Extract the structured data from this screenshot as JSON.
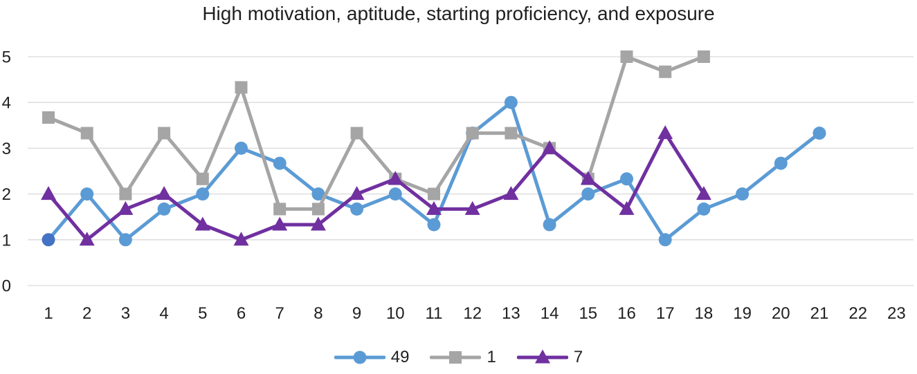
{
  "chart_data": {
    "type": "line",
    "title": "High motivation, aptitude, starting proficiency, and exposure",
    "xlabel": "",
    "ylabel": "",
    "x_labels": [
      "1",
      "2",
      "3",
      "4",
      "5",
      "6",
      "7",
      "8",
      "9",
      "10",
      "11",
      "12",
      "13",
      "14",
      "15",
      "16",
      "17",
      "18",
      "19",
      "20",
      "21",
      "22",
      "23"
    ],
    "yticks": [
      0,
      1,
      2,
      3,
      4,
      5
    ],
    "ylim": [
      0,
      5
    ],
    "grid": true,
    "grid_color": "#d9d9d9",
    "legend_position": "bottom",
    "text_color": "#1f1f1f",
    "series": [
      {
        "name": "49",
        "marker": "circle",
        "color": "#5b9bd5",
        "first_point_color": "#4472c4",
        "values": [
          1,
          2,
          1,
          1.67,
          2,
          3,
          2.67,
          2,
          1.67,
          2,
          1.33,
          3.33,
          4,
          1.33,
          2,
          2.33,
          1,
          1.67,
          2,
          2.67,
          3.33,
          null,
          null
        ]
      },
      {
        "name": "1",
        "marker": "square",
        "color": "#a5a5a5",
        "values": [
          3.67,
          3.33,
          2,
          3.33,
          2.33,
          4.33,
          1.67,
          1.67,
          3.33,
          2.33,
          2,
          3.33,
          3.33,
          3,
          2.33,
          5,
          4.67,
          5,
          null,
          null,
          null,
          null,
          null
        ]
      },
      {
        "name": "7",
        "marker": "triangle",
        "color": "#7030a0",
        "values": [
          2,
          1,
          1.67,
          2,
          1.33,
          1,
          1.33,
          1.33,
          2,
          2.33,
          1.67,
          1.67,
          2,
          3,
          2.33,
          1.67,
          3.33,
          2,
          null,
          null,
          null,
          null,
          null
        ]
      }
    ]
  }
}
